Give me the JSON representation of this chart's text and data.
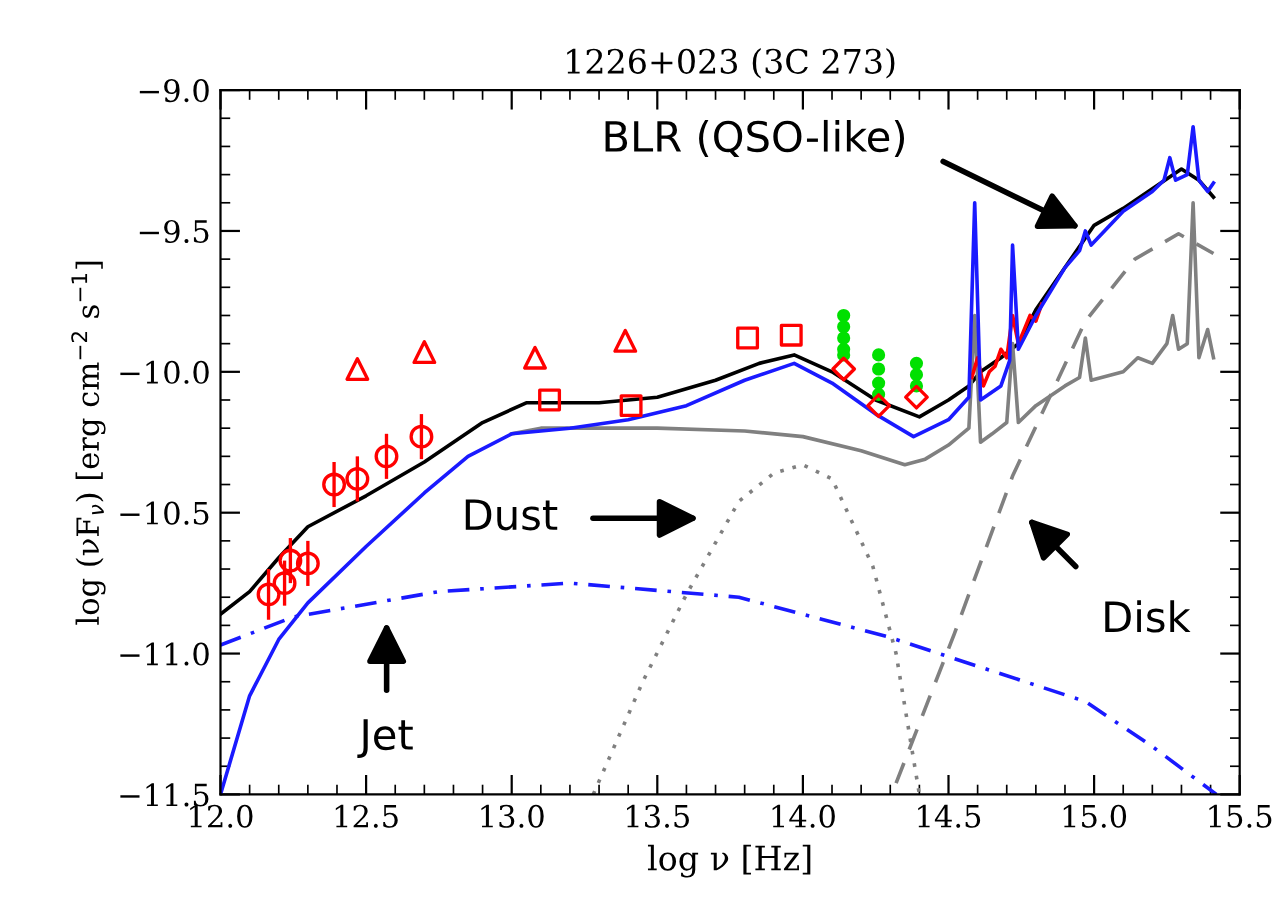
{
  "chart_data": {
    "type": "line",
    "title": "1226+023 (3C 273)",
    "xlabel": "log ν [Hz]",
    "ylabel": "log (νF$_{ν}$) [erg cm$^{−2}$ s$^{−1}$]",
    "xlim": [
      12.0,
      15.5
    ],
    "xticks": [
      {
        "value": 12.0,
        "label": "12.0"
      },
      {
        "value": 12.5,
        "label": "12.5"
      },
      {
        "value": 13.0,
        "label": "13.0"
      },
      {
        "value": 13.5,
        "label": "13.5"
      },
      {
        "value": 14.0,
        "label": "14.0"
      },
      {
        "value": 14.5,
        "label": "14.5"
      },
      {
        "value": 15.0,
        "label": "15.0"
      },
      {
        "value": 15.5,
        "label": "15.5"
      }
    ],
    "ylim": [
      -11.5,
      -9.0
    ],
    "yticks": [
      {
        "value": -11.5,
        "label": "−11.5"
      },
      {
        "value": -11.0,
        "label": "−11.0"
      },
      {
        "value": -10.5,
        "label": "−10.5"
      },
      {
        "value": -10.0,
        "label": "−10.0"
      },
      {
        "value": -9.5,
        "label": "−9.5"
      },
      {
        "value": -9.0,
        "label": "−9.0"
      }
    ],
    "grid": false,
    "series": [
      {
        "color": "#000000",
        "line_style": "solid",
        "marker": "none",
        "x": [
          12.0,
          12.1,
          12.2,
          12.3,
          12.5,
          12.7,
          12.9,
          13.05,
          13.3,
          13.5,
          13.7,
          13.85,
          13.97,
          14.1,
          14.25,
          14.4,
          14.5,
          14.57,
          14.61,
          14.68,
          14.74,
          14.8,
          14.9,
          15.0,
          15.1,
          15.2,
          15.3,
          15.36,
          15.41
        ],
        "values": [
          -10.86,
          -10.78,
          -10.66,
          -10.55,
          -10.44,
          -10.32,
          -10.18,
          -10.11,
          -10.11,
          -10.09,
          -10.03,
          -9.97,
          -9.94,
          -10.0,
          -10.1,
          -10.16,
          -10.1,
          -10.05,
          -10.0,
          -9.95,
          -9.9,
          -9.78,
          -9.63,
          -9.48,
          -9.42,
          -9.35,
          -9.28,
          -9.32,
          -9.38
        ]
      },
      {
        "color": "#808080",
        "line_style": "solid",
        "marker": "none",
        "x": [
          13.0,
          13.1,
          13.5,
          13.8,
          14.0,
          14.2,
          14.35,
          14.42,
          14.5,
          14.57,
          14.59,
          14.61,
          14.65,
          14.7,
          14.72,
          14.74,
          14.8,
          14.9,
          14.95,
          14.97,
          14.99,
          15.1,
          15.15,
          15.2,
          15.25,
          15.27,
          15.29,
          15.32,
          15.34,
          15.36,
          15.39,
          15.41
        ],
        "values": [
          -10.22,
          -10.2,
          -10.2,
          -10.21,
          -10.23,
          -10.28,
          -10.33,
          -10.31,
          -10.26,
          -10.2,
          -9.8,
          -10.25,
          -10.22,
          -10.18,
          -9.9,
          -10.18,
          -10.12,
          -10.05,
          -10.02,
          -9.88,
          -10.03,
          -10.0,
          -9.95,
          -9.97,
          -9.9,
          -9.8,
          -9.92,
          -9.9,
          -9.4,
          -9.95,
          -9.85,
          -9.95
        ]
      },
      {
        "color": "#808080",
        "line_style": "dotted",
        "marker": "none",
        "x": [
          13.28,
          13.45,
          13.6,
          13.78,
          13.9,
          14.0,
          14.1,
          14.24,
          14.32,
          14.4
        ],
        "values": [
          -11.5,
          -11.1,
          -10.79,
          -10.46,
          -10.36,
          -10.33,
          -10.38,
          -10.69,
          -11.0,
          -11.5
        ]
      },
      {
        "color": "#808080",
        "line_style": "dashed",
        "marker": "none",
        "x": [
          14.32,
          14.52,
          14.72,
          14.97,
          15.14,
          15.29,
          15.41
        ],
        "values": [
          -11.46,
          -10.93,
          -10.37,
          -9.82,
          -9.6,
          -9.51,
          -9.58
        ]
      },
      {
        "color": "#1a1aff",
        "line_style": "dashdot",
        "marker": "none",
        "x": [
          12.0,
          12.25,
          12.75,
          13.2,
          13.78,
          14.29,
          14.97,
          15.2,
          15.42
        ],
        "values": [
          -10.97,
          -10.87,
          -10.78,
          -10.75,
          -10.8,
          -10.94,
          -11.17,
          -11.33,
          -11.5
        ]
      },
      {
        "color": "#ff0000",
        "line_style": "solid",
        "marker": "none",
        "x": [
          14.58,
          14.6,
          14.62,
          14.64,
          14.66,
          14.68,
          14.7,
          14.72,
          14.74,
          14.76,
          14.78,
          14.8,
          14.82
        ],
        "values": [
          -10.02,
          -9.95,
          -10.05,
          -10.0,
          -9.98,
          -9.92,
          -9.95,
          -9.8,
          -9.9,
          -9.85,
          -9.8,
          -9.82,
          -9.76
        ]
      },
      {
        "color": "#1a1aff",
        "line_style": "solid",
        "marker": "none",
        "x": [
          12.0,
          12.1,
          12.2,
          12.3,
          12.5,
          12.7,
          12.85,
          13.0,
          13.2,
          13.4,
          13.6,
          13.8,
          13.97,
          14.1,
          14.25,
          14.38,
          14.5,
          14.57,
          14.59,
          14.61,
          14.68,
          14.71,
          14.72,
          14.74,
          14.8,
          14.9,
          14.95,
          14.97,
          14.99,
          15.1,
          15.2,
          15.24,
          15.26,
          15.28,
          15.32,
          15.34,
          15.36,
          15.39,
          15.41
        ],
        "values": [
          -11.5,
          -11.15,
          -10.95,
          -10.82,
          -10.62,
          -10.43,
          -10.3,
          -10.22,
          -10.2,
          -10.17,
          -10.12,
          -10.03,
          -9.97,
          -10.04,
          -10.15,
          -10.23,
          -10.17,
          -10.09,
          -9.4,
          -10.1,
          -10.05,
          -9.96,
          -9.55,
          -9.92,
          -9.8,
          -9.63,
          -9.57,
          -9.5,
          -9.55,
          -9.43,
          -9.36,
          -9.32,
          -9.24,
          -9.32,
          -9.3,
          -9.13,
          -9.32,
          -9.36,
          -9.33
        ]
      },
      {
        "type": "scatter",
        "color": "#00e000",
        "marker": "circle",
        "x": [
          14.14,
          14.14,
          14.14,
          14.14,
          14.14,
          14.26,
          14.26,
          14.26,
          14.26,
          14.39,
          14.39,
          14.39
        ],
        "values": [
          -9.8,
          -9.84,
          -9.88,
          -9.92,
          -9.94,
          -9.94,
          -9.99,
          -10.04,
          -10.08,
          -9.97,
          -10.01,
          -10.05
        ]
      },
      {
        "type": "scatter",
        "color": "#ff0000",
        "marker": "circle",
        "x": [
          12.165,
          12.22,
          12.24,
          12.3,
          12.39,
          12.47,
          12.57,
          12.69
        ],
        "values": [
          -10.79,
          -10.75,
          -10.67,
          -10.68,
          -10.4,
          -10.38,
          -10.3,
          -10.23
        ],
        "errors": [
          0.09,
          0.08,
          0.08,
          0.08,
          0.08,
          0.08,
          0.08,
          0.08
        ]
      },
      {
        "type": "scatter",
        "color": "#ff0000",
        "marker": "triangle",
        "x": [
          12.47,
          12.7,
          13.08,
          13.39
        ],
        "values": [
          -9.99,
          -9.93,
          -9.95,
          -9.89
        ]
      },
      {
        "type": "scatter",
        "color": "#ff0000",
        "marker": "square",
        "x": [
          13.13,
          13.41,
          13.81,
          13.96
        ],
        "values": [
          -10.1,
          -10.12,
          -9.88,
          -9.87
        ]
      },
      {
        "type": "scatter",
        "color": "#ff0000",
        "marker": "diamond",
        "x": [
          14.14,
          14.26,
          14.39
        ],
        "values": [
          -9.99,
          -10.12,
          -10.09
        ]
      }
    ],
    "annotations": [
      {
        "text": "BLR (QSO-like)",
        "x": 14.97,
        "y": -9.5
      },
      "Dust",
      "Jet",
      "Disk"
    ]
  }
}
